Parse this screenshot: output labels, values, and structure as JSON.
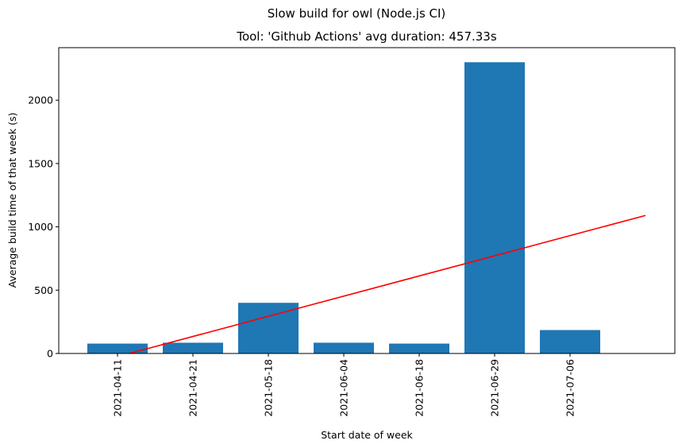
{
  "chart_data": {
    "type": "bar",
    "suptitle": "Slow build for owl (Node.js CI)",
    "title": "Tool: 'Github Actions' avg duration: 457.33s",
    "xlabel": "Start date of week",
    "ylabel": "Average build time of that week (s)",
    "categories": [
      "2021-04-11",
      "2021-04-21",
      "2021-05-18",
      "2021-06-04",
      "2021-06-18",
      "2021-06-29",
      "2021-07-06"
    ],
    "values": [
      78,
      85,
      400,
      85,
      78,
      2300,
      185
    ],
    "ylim": [
      0,
      2415
    ],
    "yticks": [
      0,
      500,
      1000,
      1500,
      2000
    ],
    "bar_color": "#1f77b4",
    "trend_line": {
      "color": "#ff0000",
      "x_start": 0,
      "x_end": 7,
      "y_start": -25,
      "y_end": 1090
    },
    "grid": false
  }
}
